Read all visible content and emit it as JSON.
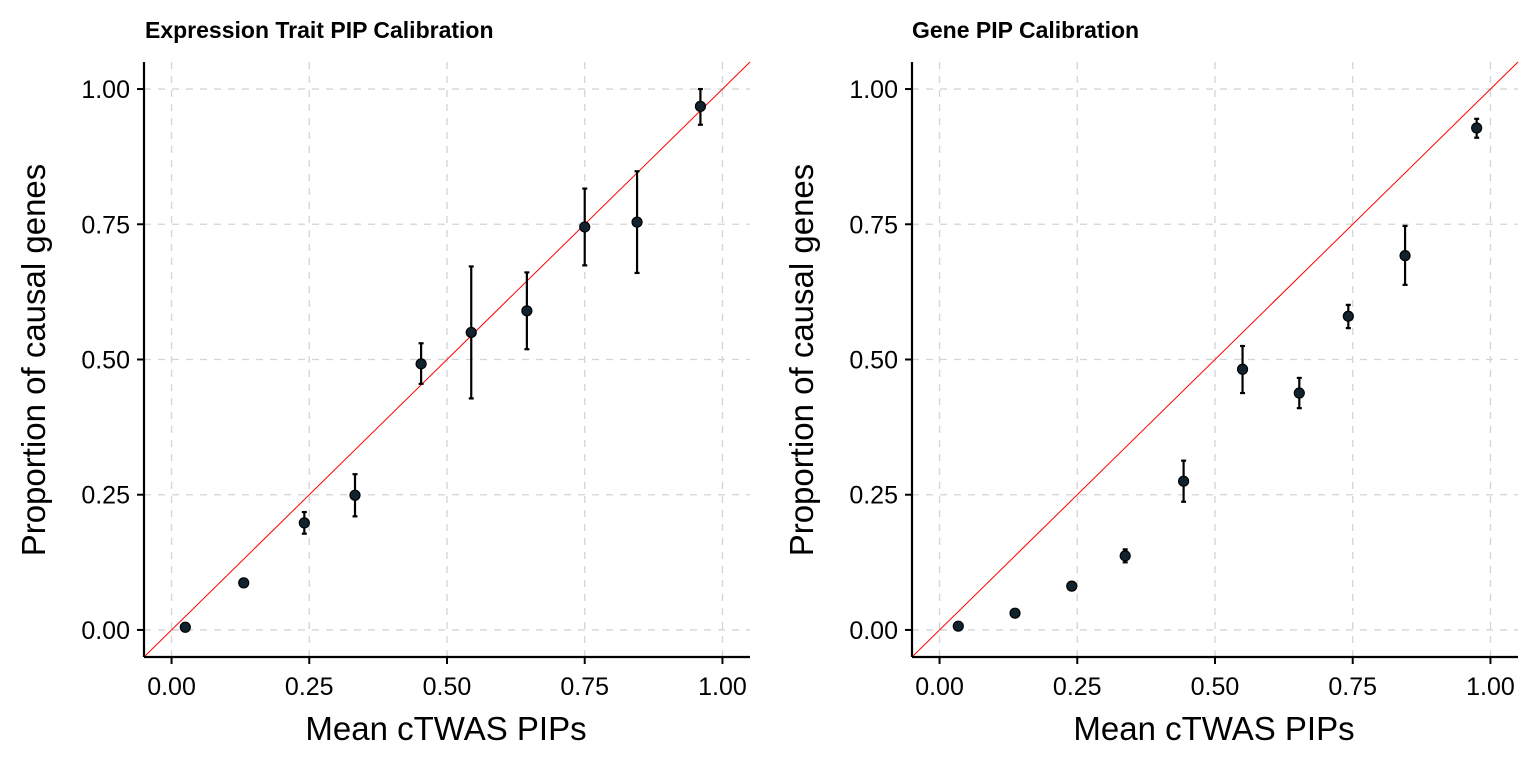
{
  "chart_data": [
    {
      "type": "scatter",
      "title": "Expression Trait PIP Calibration",
      "xlabel": "Mean cTWAS PIPs",
      "ylabel": "Proportion of causal genes",
      "xlim": [
        -0.05,
        1.05
      ],
      "ylim": [
        -0.05,
        1.05
      ],
      "xticks": [
        "0.00",
        "0.25",
        "0.50",
        "0.75",
        "1.00"
      ],
      "yticks": [
        "0.00",
        "0.25",
        "0.50",
        "0.75",
        "1.00"
      ],
      "grid": true,
      "reference_line": "y = x",
      "reference_color": "#ff0000",
      "point_color": "#10232e",
      "points": [
        {
          "x": 0.025,
          "y": 0.005,
          "lower": 0.005,
          "upper": 0.005
        },
        {
          "x": 0.131,
          "y": 0.087,
          "lower": 0.087,
          "upper": 0.087
        },
        {
          "x": 0.241,
          "y": 0.198,
          "lower": 0.178,
          "upper": 0.218
        },
        {
          "x": 0.333,
          "y": 0.249,
          "lower": 0.21,
          "upper": 0.288
        },
        {
          "x": 0.453,
          "y": 0.492,
          "lower": 0.455,
          "upper": 0.53
        },
        {
          "x": 0.544,
          "y": 0.55,
          "lower": 0.428,
          "upper": 0.672
        },
        {
          "x": 0.645,
          "y": 0.59,
          "lower": 0.519,
          "upper": 0.661
        },
        {
          "x": 0.75,
          "y": 0.745,
          "lower": 0.674,
          "upper": 0.816
        },
        {
          "x": 0.845,
          "y": 0.754,
          "lower": 0.66,
          "upper": 0.848
        },
        {
          "x": 0.96,
          "y": 0.968,
          "lower": 0.934,
          "upper": 1.0
        }
      ]
    },
    {
      "type": "scatter",
      "title": "Gene PIP Calibration",
      "xlabel": "Mean cTWAS PIPs",
      "ylabel": "Proportion of causal genes",
      "xlim": [
        -0.05,
        1.05
      ],
      "ylim": [
        -0.05,
        1.05
      ],
      "xticks": [
        "0.00",
        "0.25",
        "0.50",
        "0.75",
        "1.00"
      ],
      "yticks": [
        "0.00",
        "0.25",
        "0.50",
        "0.75",
        "1.00"
      ],
      "grid": true,
      "reference_line": "y = x",
      "reference_color": "#ff0000",
      "point_color": "#10232e",
      "points": [
        {
          "x": 0.034,
          "y": 0.007,
          "lower": 0.007,
          "upper": 0.007
        },
        {
          "x": 0.137,
          "y": 0.031,
          "lower": 0.031,
          "upper": 0.031
        },
        {
          "x": 0.24,
          "y": 0.081,
          "lower": 0.081,
          "upper": 0.081
        },
        {
          "x": 0.337,
          "y": 0.137,
          "lower": 0.125,
          "upper": 0.149
        },
        {
          "x": 0.443,
          "y": 0.275,
          "lower": 0.237,
          "upper": 0.313
        },
        {
          "x": 0.55,
          "y": 0.482,
          "lower": 0.438,
          "upper": 0.525
        },
        {
          "x": 0.653,
          "y": 0.438,
          "lower": 0.41,
          "upper": 0.466
        },
        {
          "x": 0.742,
          "y": 0.58,
          "lower": 0.558,
          "upper": 0.601
        },
        {
          "x": 0.845,
          "y": 0.692,
          "lower": 0.638,
          "upper": 0.747
        },
        {
          "x": 0.975,
          "y": 0.928,
          "lower": 0.91,
          "upper": 0.945
        }
      ]
    }
  ]
}
